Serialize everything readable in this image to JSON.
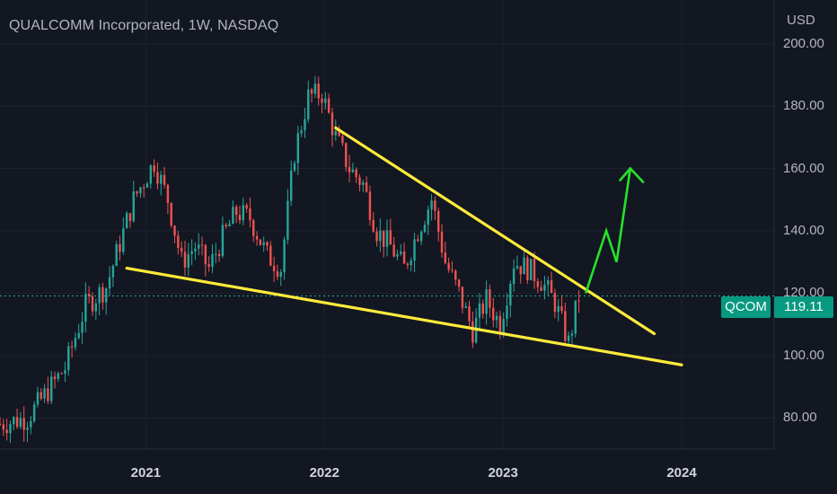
{
  "header": {
    "title": "QUALCOMM Incorporated, 1W, NASDAQ",
    "currency": "USD"
  },
  "price_tag": {
    "ticker": "QCOM",
    "price": "119.11"
  },
  "colors": {
    "background": "#131722",
    "up": "#26a69a",
    "down": "#ef5350",
    "trendline": "#ffeb3b",
    "projection_arrow": "#27e22a",
    "price_line": "#26a69a",
    "axis_text": "#b2b5be"
  },
  "chart_data": {
    "type": "candlestick",
    "title": "QUALCOMM Incorporated, 1W, NASDAQ",
    "ylabel": "USD",
    "x_tick_labels": [
      "2021",
      "2022",
      "2023",
      "2024"
    ],
    "y_tick_labels": [
      "200.00",
      "180.00",
      "160.00",
      "140.00",
      "120.00",
      "100.00",
      "80.00"
    ],
    "ylim": [
      70,
      214
    ],
    "xlim": [
      "2020-03-09",
      "2024-07-08"
    ],
    "last_price": 119.11,
    "approx_close_path": [
      {
        "date": "2020-03-09",
        "close": 78
      },
      {
        "date": "2020-05-04",
        "close": 80
      },
      {
        "date": "2020-07-20",
        "close": 96
      },
      {
        "date": "2020-08-31",
        "close": 116
      },
      {
        "date": "2020-10-12",
        "close": 122
      },
      {
        "date": "2020-12-07",
        "close": 150
      },
      {
        "date": "2021-01-18",
        "close": 162
      },
      {
        "date": "2021-02-15",
        "close": 150
      },
      {
        "date": "2021-03-15",
        "close": 130
      },
      {
        "date": "2021-04-12",
        "close": 135
      },
      {
        "date": "2021-05-10",
        "close": 128
      },
      {
        "date": "2021-06-07",
        "close": 138
      },
      {
        "date": "2021-07-05",
        "close": 146
      },
      {
        "date": "2021-08-02",
        "close": 144
      },
      {
        "date": "2021-09-06",
        "close": 132
      },
      {
        "date": "2021-10-04",
        "close": 128
      },
      {
        "date": "2021-11-01",
        "close": 165
      },
      {
        "date": "2021-11-29",
        "close": 183
      },
      {
        "date": "2021-12-27",
        "close": 184
      },
      {
        "date": "2022-01-24",
        "close": 170
      },
      {
        "date": "2022-02-21",
        "close": 160
      },
      {
        "date": "2022-03-21",
        "close": 155
      },
      {
        "date": "2022-04-18",
        "close": 140
      },
      {
        "date": "2022-05-16",
        "close": 135
      },
      {
        "date": "2022-06-13",
        "close": 128
      },
      {
        "date": "2022-07-11",
        "close": 140
      },
      {
        "date": "2022-08-08",
        "close": 150
      },
      {
        "date": "2022-09-05",
        "close": 130
      },
      {
        "date": "2022-10-03",
        "close": 120
      },
      {
        "date": "2022-10-31",
        "close": 108
      },
      {
        "date": "2022-11-28",
        "close": 118
      },
      {
        "date": "2022-12-26",
        "close": 110
      },
      {
        "date": "2023-01-23",
        "close": 130
      },
      {
        "date": "2023-02-20",
        "close": 128
      },
      {
        "date": "2023-03-20",
        "close": 124
      },
      {
        "date": "2023-04-17",
        "close": 117
      },
      {
        "date": "2023-05-15",
        "close": 104
      },
      {
        "date": "2023-06-05",
        "close": 119.11
      }
    ],
    "annotations": [
      {
        "type": "trendline",
        "name": "upper-falling-trendline",
        "from": {
          "date": "2022-01-24",
          "close": 173
        },
        "to": {
          "date": "2023-11-06",
          "close": 107
        }
      },
      {
        "type": "trendline",
        "name": "lower-falling-trendline",
        "from": {
          "date": "2020-11-23",
          "close": 128
        },
        "to": {
          "date": "2024-01-01",
          "close": 97
        }
      },
      {
        "type": "arrow",
        "name": "bullish-projection-arrow",
        "points": [
          {
            "date": "2023-06-19",
            "close": 120
          },
          {
            "date": "2023-07-31",
            "close": 140
          },
          {
            "date": "2023-08-21",
            "close": 130
          },
          {
            "date": "2023-09-18",
            "close": 160
          }
        ]
      }
    ]
  }
}
